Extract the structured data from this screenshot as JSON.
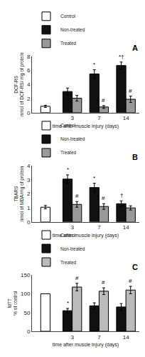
{
  "chart_data": [
    {
      "type": "bar",
      "title": "A",
      "xlabel": "time after muscle injury (days)",
      "ylabel": "DCF-RS\nnmol of DCF-RS/ mg of protein",
      "categories": [
        null,
        "3",
        "7",
        "14"
      ],
      "series": [
        {
          "name": "Control",
          "color": "#ffffff",
          "values": [
            0.9,
            null,
            null,
            null
          ],
          "errors": [
            0.15,
            null,
            null,
            null
          ],
          "annotations": [
            null,
            null,
            null,
            null
          ]
        },
        {
          "name": "Non-treated",
          "color": "#111111",
          "values": [
            null,
            3.0,
            5.5,
            6.7
          ],
          "errors": [
            null,
            0.5,
            0.6,
            0.5
          ],
          "annotations": [
            null,
            null,
            "*",
            "*†"
          ]
        },
        {
          "name": "Treated",
          "color": "#999999",
          "values": [
            null,
            2.05,
            0.8,
            1.9
          ],
          "errors": [
            null,
            0.4,
            0.2,
            0.45
          ],
          "annotations": [
            null,
            null,
            "#",
            "#"
          ]
        }
      ],
      "ylim": [
        0,
        8
      ],
      "yticks": [
        0,
        2,
        4,
        6,
        8
      ],
      "grid": false,
      "legend": "upper left"
    },
    {
      "type": "bar",
      "title": "B",
      "xlabel": "time after muscle injury (days)",
      "ylabel": "TBARS\nnmol of MDA/mg of protein",
      "categories": [
        null,
        "3",
        "7",
        "14"
      ],
      "series": [
        {
          "name": "Control",
          "color": "#ffffff",
          "values": [
            1.05,
            null,
            null,
            null
          ],
          "errors": [
            0.12,
            null,
            null,
            null
          ],
          "annotations": [
            null,
            null,
            null,
            null
          ]
        },
        {
          "name": "Non-treated",
          "color": "#111111",
          "values": [
            null,
            3.05,
            2.45,
            1.3
          ],
          "errors": [
            null,
            0.3,
            0.3,
            0.2
          ],
          "annotations": [
            null,
            "*",
            "*",
            "†"
          ]
        },
        {
          "name": "Treated",
          "color": "#999999",
          "values": [
            null,
            1.25,
            1.1,
            1.0
          ],
          "errors": [
            null,
            0.2,
            0.2,
            0.15
          ],
          "annotations": [
            null,
            "#",
            "#",
            null
          ]
        }
      ],
      "ylim": [
        0,
        4
      ],
      "yticks": [
        0,
        1,
        2,
        3,
        4
      ],
      "grid": false,
      "legend": "upper left"
    },
    {
      "type": "bar",
      "title": "C",
      "xlabel": "time after muscle injury (days)",
      "ylabel": "MTT\n% of control",
      "categories": [
        null,
        "3",
        "7",
        "14"
      ],
      "series": [
        {
          "name": "Control",
          "color": "#ffffff",
          "values": [
            100,
            null,
            null,
            null
          ],
          "errors": [
            0,
            null,
            null,
            null
          ],
          "annotations": [
            null,
            null,
            null,
            null
          ]
        },
        {
          "name": "Non-treated",
          "color": "#111111",
          "values": [
            null,
            55,
            68,
            65
          ],
          "errors": [
            null,
            6,
            8,
            9
          ],
          "annotations": [
            null,
            "*",
            null,
            null
          ]
        },
        {
          "name": "Treated",
          "color": "#bbbbbb",
          "values": [
            null,
            118,
            107,
            110
          ],
          "errors": [
            null,
            10,
            9,
            10
          ],
          "annotations": [
            null,
            "#",
            "#",
            "#"
          ]
        }
      ],
      "ylim": [
        0,
        150
      ],
      "yticks": [
        0,
        50,
        100,
        150
      ],
      "grid": false,
      "legend": "upper left"
    }
  ]
}
